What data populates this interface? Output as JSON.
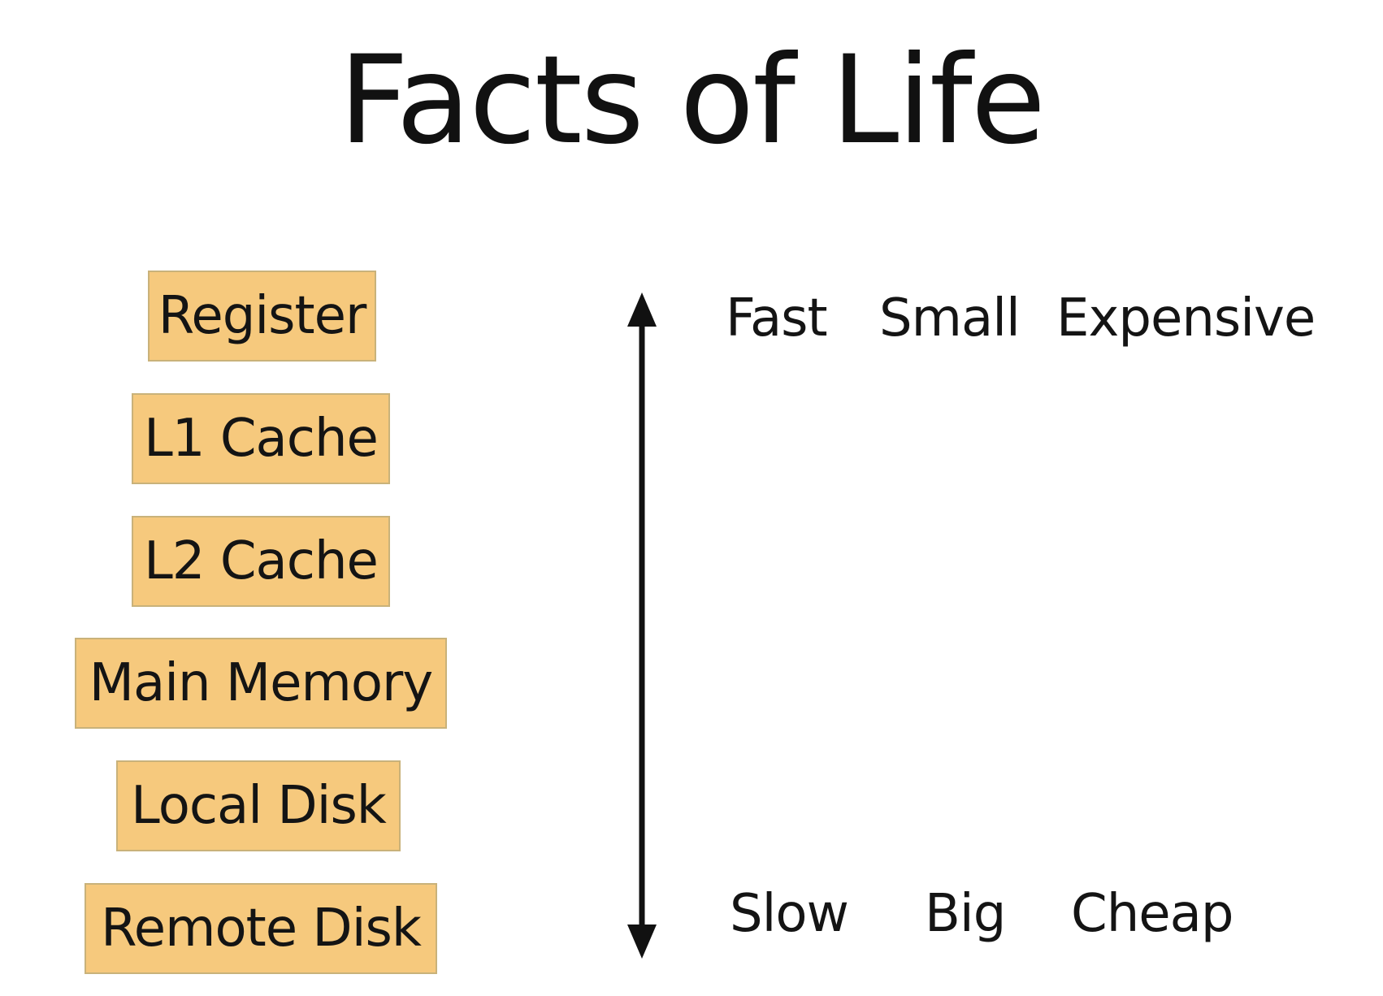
{
  "title": "Facts of Life",
  "box_color": "#f6c97d",
  "hierarchy": [
    {
      "label": "Register"
    },
    {
      "label": "L1 Cache"
    },
    {
      "label": "L2 Cache"
    },
    {
      "label": "Main Memory"
    },
    {
      "label": "Local Disk"
    },
    {
      "label": "Remote Disk"
    }
  ],
  "top_traits": {
    "speed": "Fast",
    "size": "Small",
    "cost": "Expensive"
  },
  "bottom_traits": {
    "speed": "Slow",
    "size": "Big",
    "cost": "Cheap"
  },
  "arrow": {
    "direction": "bidirectional-vertical",
    "icon": "double-arrow-icon"
  }
}
